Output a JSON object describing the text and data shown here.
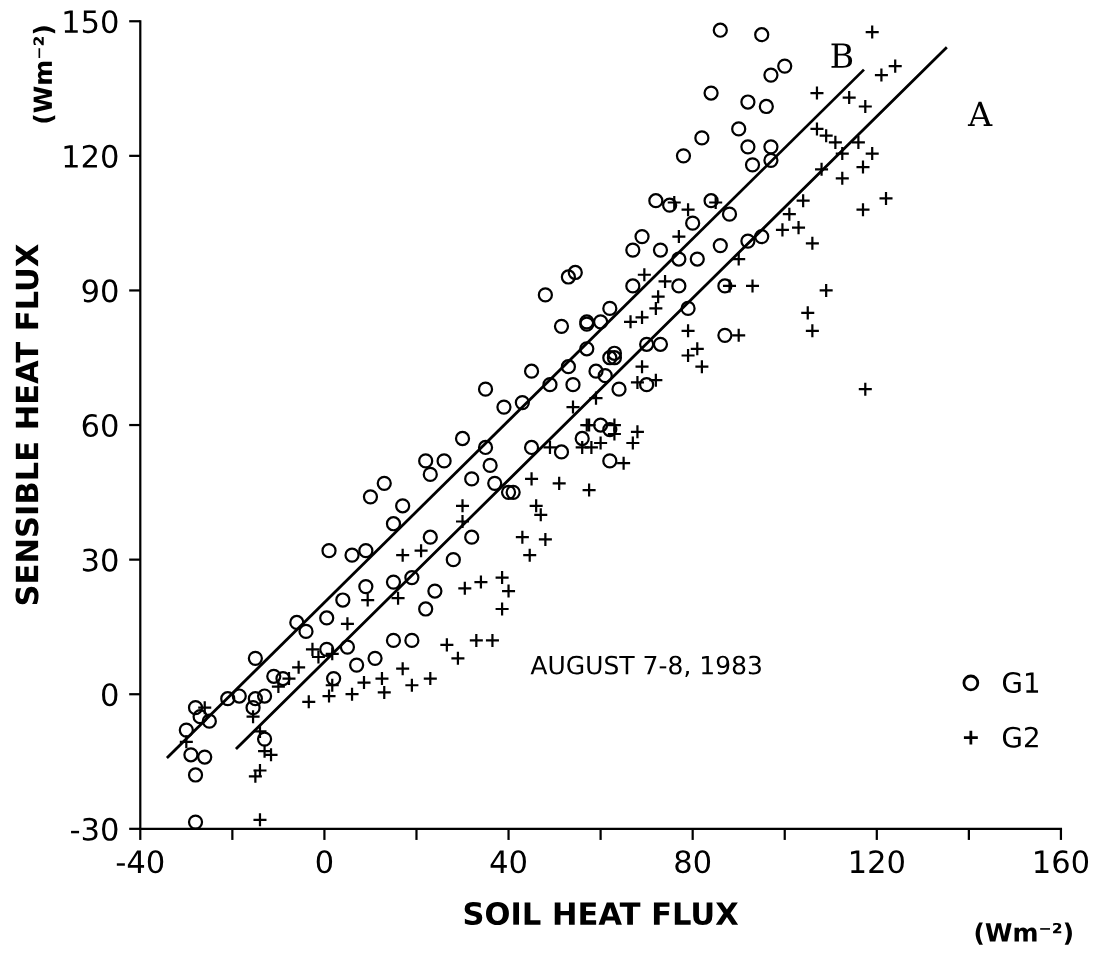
{
  "chart_data": {
    "type": "scatter",
    "xlabel": "SOIL HEAT FLUX",
    "ylabel": "SENSIBLE HEAT FLUX",
    "annotations": [
      "(Wm⁻²)",
      "(Wm⁻²)",
      "AUGUST 7-8, 1983"
    ],
    "xlim": [
      -40,
      160
    ],
    "ylim": [
      -30,
      150
    ],
    "xticks": [
      -40,
      {
        "value": -20,
        "label": null
      },
      0,
      {
        "value": 20,
        "label": null
      },
      40,
      {
        "value": 60,
        "label": null
      },
      80,
      {
        "value": 100,
        "label": null
      },
      120,
      {
        "value": 140,
        "label": null
      },
      160
    ],
    "yticks": [
      -30,
      0,
      30,
      60,
      90,
      120,
      150
    ],
    "grid": false,
    "legend": "bottom right",
    "series": [
      {
        "name": "G1",
        "marker": "circle",
        "color": "#000000",
        "x": [
          86,
          95,
          97,
          100,
          84,
          92,
          96,
          82,
          78,
          90,
          92,
          97,
          93,
          97,
          72,
          75,
          84,
          88,
          80,
          69,
          67,
          73,
          77,
          81,
          86,
          92,
          95,
          54.5,
          67,
          77,
          87,
          57,
          60,
          62,
          79,
          87,
          57,
          63,
          70,
          73,
          61,
          64,
          70,
          60,
          48,
          53,
          51.5,
          57,
          35,
          45,
          39,
          43,
          49,
          53,
          54,
          59,
          62,
          30,
          22,
          26,
          23,
          35,
          36,
          32,
          10,
          13,
          17,
          15,
          23,
          28,
          32,
          37,
          41,
          1,
          6,
          9,
          4,
          9,
          15,
          19,
          24,
          22,
          -6,
          -4,
          0.5,
          0.5,
          5,
          15,
          19,
          7,
          11,
          2,
          -11,
          -15,
          -9,
          -18.5,
          -13,
          -21,
          -28,
          -30,
          -29,
          -26,
          -28,
          -28,
          -15.5,
          -13,
          -27,
          -25,
          -15,
          45,
          51.5,
          56,
          62,
          62,
          40,
          63
        ],
        "values": [
          148,
          147,
          138,
          140,
          134,
          132,
          131,
          124,
          120,
          126,
          122,
          122,
          118,
          119,
          110,
          109,
          110,
          107,
          105,
          102,
          99,
          99,
          97,
          97,
          100,
          101,
          102,
          94,
          91,
          91,
          91,
          83,
          83,
          86,
          86,
          80,
          77,
          75,
          78,
          78,
          71,
          68,
          69,
          60,
          89,
          93,
          82,
          82.5,
          68,
          72,
          64,
          65,
          69,
          73,
          69,
          72,
          75,
          57,
          52,
          52,
          49,
          55,
          51,
          48,
          44,
          47,
          42,
          38,
          35,
          30,
          35,
          47,
          45,
          32,
          31,
          32,
          21,
          24,
          25,
          26,
          23,
          19,
          16,
          14,
          17,
          10,
          10.5,
          12,
          12,
          6.5,
          8,
          3.5,
          4,
          8,
          3.5,
          -0.4,
          -0.4,
          -1,
          -3,
          -8,
          -13.5,
          -14,
          -18,
          -28.5,
          -3,
          -10,
          -5,
          -6,
          -1,
          55,
          54,
          57,
          59,
          52,
          45,
          76
        ]
      },
      {
        "name": "G2",
        "marker": "cross",
        "color": "#000000",
        "x": [
          119,
          124,
          121,
          107,
          114,
          117.5,
          107,
          109,
          111,
          116,
          112.5,
          119,
          117,
          108,
          112.5,
          122,
          117,
          104,
          101,
          99.5,
          103,
          106,
          109,
          105,
          106,
          117.5,
          90,
          93,
          88,
          90,
          79,
          77,
          74,
          72.5,
          69.5,
          66.5,
          69,
          72,
          79,
          81,
          79,
          82,
          69,
          68,
          72,
          59,
          63,
          68,
          76,
          85,
          57,
          60,
          63,
          67,
          58,
          65,
          57.5,
          54,
          57.5,
          49,
          56,
          45,
          51,
          46,
          47,
          43,
          48,
          44.6,
          38.6,
          40,
          38.6,
          34,
          30.5,
          21,
          17,
          30,
          30,
          36.5,
          33,
          29,
          26.6,
          23,
          17,
          19,
          12.5,
          13,
          8.6,
          6,
          1,
          1.7,
          -3.4,
          -7.7,
          -5.6,
          -1.3,
          1.7,
          -2.6,
          5,
          9.4,
          16,
          -15.5,
          -13,
          -15,
          -14,
          -11.6,
          -14,
          -30,
          -26,
          -14,
          -10
        ],
        "values": [
          147.6,
          140,
          138,
          134,
          133,
          131,
          126,
          124.5,
          123,
          123,
          120.5,
          120.5,
          117.5,
          117,
          115,
          110.5,
          108,
          110,
          107,
          103.5,
          104,
          100.5,
          90,
          85,
          81,
          68,
          97,
          91,
          91,
          80,
          108,
          102,
          92,
          88.6,
          93.5,
          83,
          84,
          86,
          81,
          77,
          75.5,
          73,
          73,
          69.5,
          70,
          66,
          60,
          58.5,
          109.6,
          109.6,
          60,
          56,
          58,
          56,
          55,
          51.5,
          45.5,
          64,
          60,
          55,
          55,
          48,
          47,
          42,
          40,
          35,
          34.5,
          31,
          26,
          23,
          19,
          25,
          23.6,
          32,
          31,
          42,
          38.5,
          12,
          12,
          8,
          11,
          3.5,
          5.7,
          2,
          3.5,
          0.4,
          2.6,
          0,
          -0.4,
          2,
          -1.7,
          3.5,
          6,
          8.3,
          9,
          10,
          15.7,
          21,
          21.4,
          -5,
          -12.7,
          -18.3,
          -17,
          -13.5,
          -28,
          -10.6,
          -3,
          -8.3,
          1.7
        ]
      },
      {
        "name": "B",
        "type": "line",
        "color": "#000000",
        "x": [
          -34,
          117
        ],
        "values": [
          -14,
          139
        ]
      },
      {
        "name": "A",
        "type": "line",
        "color": "#000000",
        "x": [
          -19,
          135
        ],
        "values": [
          -12,
          144
        ]
      }
    ]
  }
}
